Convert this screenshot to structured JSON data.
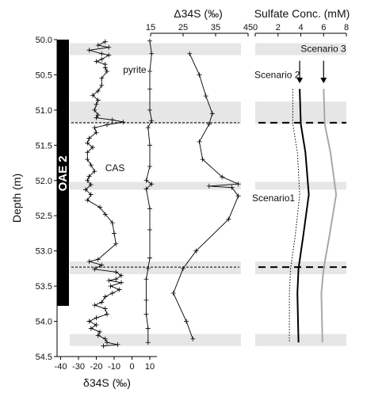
{
  "chart_data": [
    {
      "type": "line",
      "panel": "delta34S",
      "ylabel": "Depth (m)",
      "xlabel": "δ34S (‰)",
      "ylim": [
        50.0,
        54.5
      ],
      "y_ticks": [
        "50.0",
        "50.5",
        "51.0",
        "51.5",
        "52.0",
        "52.5",
        "53.0",
        "53.5",
        "54.0",
        "54.5"
      ],
      "x_ticks": [
        "-40",
        "-30",
        "-20",
        "-10",
        "0",
        "10"
      ],
      "xlim": [
        -42,
        14
      ],
      "unit_band_label": "OAE 2",
      "unit_band_range": [
        50.0,
        53.78
      ],
      "grey_bands": [
        [
          50.05,
          50.22
        ],
        [
          50.88,
          51.2
        ],
        [
          52.02,
          52.13
        ],
        [
          53.15,
          53.33
        ],
        [
          54.18,
          54.35
        ]
      ],
      "dashed_levels": [
        51.18,
        53.23
      ],
      "labels": [
        {
          "text": "pyrite",
          "x": -5,
          "y": 50.47
        },
        {
          "text": "CAS",
          "x": -15,
          "y": 51.87
        }
      ],
      "series": [
        {
          "name": "pyrite",
          "points": [
            [
              -15,
              50.03
            ],
            [
              -19,
              50.08
            ],
            [
              -13,
              50.11
            ],
            [
              -24,
              50.15
            ],
            [
              -17,
              50.2
            ],
            [
              -13,
              50.22
            ],
            [
              -17,
              50.28
            ],
            [
              -20,
              50.31
            ],
            [
              -15,
              50.35
            ],
            [
              -15,
              50.4
            ],
            [
              -14,
              50.45
            ],
            [
              -17,
              50.55
            ],
            [
              -17,
              50.65
            ],
            [
              -19,
              50.73
            ],
            [
              -22,
              50.79
            ],
            [
              -19,
              50.86
            ],
            [
              -20,
              50.92
            ],
            [
              -21,
              51.0
            ],
            [
              -19,
              51.07
            ],
            [
              -20,
              51.11
            ],
            [
              -11,
              51.14
            ],
            [
              -5,
              51.17
            ],
            [
              -14,
              51.21
            ],
            [
              -21,
              51.25
            ],
            [
              -20,
              51.32
            ],
            [
              -24,
              51.4
            ],
            [
              -25,
              51.47
            ],
            [
              -22,
              51.53
            ],
            [
              -25,
              51.6
            ],
            [
              -25,
              51.7
            ],
            [
              -23,
              51.78
            ],
            [
              -21,
              51.87
            ],
            [
              -24,
              51.94
            ],
            [
              -25,
              52.0
            ],
            [
              -23,
              52.06
            ],
            [
              -26,
              52.13
            ],
            [
              -23,
              52.2
            ],
            [
              -25,
              52.28
            ],
            [
              -18,
              52.38
            ],
            [
              -15,
              52.48
            ],
            [
              -11,
              52.6
            ],
            [
              -10,
              52.75
            ],
            [
              -9,
              52.9
            ],
            [
              -19,
              53.12
            ],
            [
              -24,
              53.15
            ],
            [
              -17,
              53.2
            ],
            [
              -21,
              53.26
            ],
            [
              -9,
              53.3
            ],
            [
              -6,
              53.35
            ],
            [
              -9,
              53.4
            ],
            [
              -13,
              53.42
            ],
            [
              -6,
              53.45
            ],
            [
              -12,
              53.5
            ],
            [
              -7,
              53.55
            ],
            [
              -11,
              53.6
            ],
            [
              -15,
              53.65
            ],
            [
              -17,
              53.73
            ],
            [
              -21,
              53.77
            ],
            [
              -15,
              53.82
            ],
            [
              -14,
              53.9
            ],
            [
              -20,
              53.95
            ],
            [
              -24,
              54.0
            ],
            [
              -20,
              54.05
            ],
            [
              -23,
              54.1
            ],
            [
              -18,
              54.15
            ],
            [
              -19,
              54.2
            ],
            [
              -15,
              54.25
            ],
            [
              -14,
              54.3
            ],
            [
              -8,
              54.33
            ],
            [
              -16,
              54.35
            ]
          ]
        },
        {
          "name": "CAS",
          "points": [
            [
              10,
              50.02
            ],
            [
              11,
              50.2
            ],
            [
              10,
              50.45
            ],
            [
              10,
              50.7
            ],
            [
              10,
              51.0
            ],
            [
              11,
              51.15
            ],
            [
              9,
              51.25
            ],
            [
              10,
              51.5
            ],
            [
              10,
              51.8
            ],
            [
              8,
              52.0
            ],
            [
              11,
              52.05
            ],
            [
              8,
              52.12
            ],
            [
              10,
              52.4
            ],
            [
              10,
              52.7
            ],
            [
              10,
              53.1
            ],
            [
              9,
              53.25
            ],
            [
              8,
              53.4
            ],
            [
              8,
              53.7
            ],
            [
              8,
              53.9
            ],
            [
              9,
              54.1
            ],
            [
              9,
              54.3
            ]
          ]
        }
      ]
    },
    {
      "type": "line",
      "panel": "Delta34S",
      "title": "Δ34S (‰)",
      "xlim": [
        15,
        45
      ],
      "x_ticks": [
        "15",
        "25",
        "35",
        "45"
      ],
      "ylim": [
        50.0,
        54.5
      ],
      "series": [
        {
          "name": "Δ34S",
          "points": [
            [
              27,
              50.2
            ],
            [
              30,
              50.5
            ],
            [
              32,
              50.8
            ],
            [
              34,
              51.05
            ],
            [
              33,
              51.2
            ],
            [
              30,
              51.45
            ],
            [
              31,
              51.7
            ],
            [
              37,
              51.95
            ],
            [
              42,
              52.05
            ],
            [
              33,
              52.08
            ],
            [
              40,
              52.1
            ],
            [
              42,
              52.22
            ],
            [
              39,
              52.55
            ],
            [
              29,
              53.0
            ],
            [
              25,
              53.25
            ],
            [
              22,
              53.6
            ],
            [
              26,
              54.0
            ],
            [
              28,
              54.25
            ]
          ]
        }
      ]
    },
    {
      "type": "line",
      "panel": "sulfate",
      "title": "Sulfate Conc. (mM)",
      "xlim": [
        0,
        8
      ],
      "x_ticks": [
        "0",
        "2",
        "4",
        "6",
        "8"
      ],
      "ylim": [
        50.0,
        54.5
      ],
      "grey_bands": [
        [
          50.05,
          50.22
        ],
        [
          50.88,
          51.2
        ],
        [
          52.02,
          52.13
        ],
        [
          53.15,
          53.33
        ],
        [
          54.18,
          54.35
        ]
      ],
      "dashed_levels": [
        51.18,
        53.23
      ],
      "labels": [
        {
          "text": "Scenario 3",
          "x": 6,
          "y": 50.13
        },
        {
          "text": "Scenario 2",
          "x": 3.2,
          "y": 50.5
        },
        {
          "text": "Scenario1",
          "x": 2.2,
          "y": 52.25
        }
      ],
      "arrows": [
        {
          "x": 3.9,
          "y_from": 50.3,
          "y_to": 50.62
        },
        {
          "x": 6,
          "y_from": 50.3,
          "y_to": 50.62
        }
      ],
      "series": [
        {
          "name": "Scenario1",
          "style": "dotted",
          "points": [
            [
              3.3,
              50.7
            ],
            [
              3.3,
              51.2
            ],
            [
              3.7,
              51.6
            ],
            [
              3.9,
              52.2
            ],
            [
              3.5,
              52.8
            ],
            [
              3.1,
              53.25
            ],
            [
              3.0,
              53.6
            ],
            [
              3.0,
              54.3
            ]
          ]
        },
        {
          "name": "Scenario 2",
          "style": "solid",
          "points": [
            [
              3.9,
              50.7
            ],
            [
              4.0,
              51.2
            ],
            [
              4.4,
              51.6
            ],
            [
              4.7,
              52.2
            ],
            [
              4.2,
              52.8
            ],
            [
              3.8,
              53.25
            ],
            [
              3.7,
              53.6
            ],
            [
              3.8,
              54.3
            ]
          ]
        },
        {
          "name": "Scenario 3",
          "style": "grey",
          "points": [
            [
              6.0,
              50.7
            ],
            [
              6.1,
              51.2
            ],
            [
              6.6,
              51.6
            ],
            [
              7.1,
              52.2
            ],
            [
              6.5,
              52.8
            ],
            [
              6.0,
              53.25
            ],
            [
              5.8,
              53.6
            ],
            [
              5.9,
              54.3
            ]
          ]
        }
      ]
    }
  ]
}
